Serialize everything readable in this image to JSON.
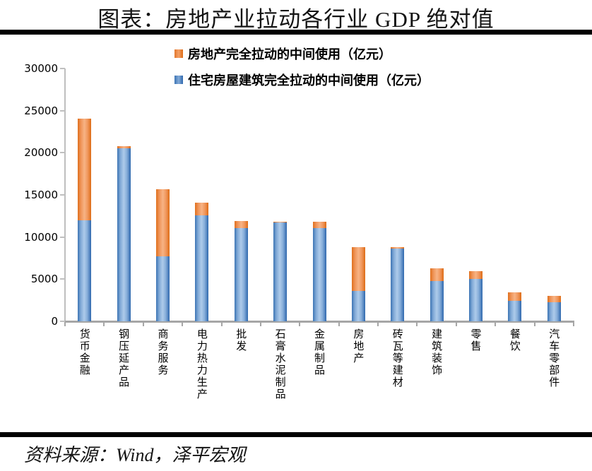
{
  "page": {
    "title": "图表：房地产业拉动各行业 GDP 绝对值",
    "source_note": "资料来源：Wind，泽平宏观"
  },
  "legend": [
    {
      "label": "房地产完全拉动的中间使用（亿元）",
      "color": "#ED7D31"
    },
    {
      "label": "住宅房屋建筑完全拉动的中间使用（亿元）",
      "color": "#4F81BD"
    }
  ],
  "chart_data": {
    "type": "bar",
    "stacked": true,
    "title": "图表：房地产业拉动各行业 GDP 绝对值",
    "xlabel": "",
    "ylabel": "",
    "unit": "亿元",
    "ylim": [
      0,
      30000
    ],
    "yticks": [
      0,
      5000,
      10000,
      15000,
      20000,
      25000,
      30000
    ],
    "grid": false,
    "legend_position": "top",
    "categories": [
      "货币金融",
      "钢压延产品",
      "商务服务",
      "电力热力生产",
      "批发",
      "石膏水泥制品",
      "金属制品",
      "房地产",
      "砖瓦等建材",
      "建筑装饰",
      "零售",
      "餐饮",
      "汽车零部件"
    ],
    "series": [
      {
        "name": "住宅房屋建筑完全拉动的中间使用（亿元）",
        "color": "#4F81BD",
        "values": [
          12000,
          20500,
          7700,
          12600,
          11050,
          11750,
          11100,
          3600,
          8650,
          4800,
          5000,
          2400,
          2250
        ]
      },
      {
        "name": "房地产完全拉动的中间使用（亿元）",
        "color": "#ED7D31",
        "values": [
          12050,
          300,
          8000,
          1500,
          850,
          100,
          700,
          5200,
          150,
          1450,
          950,
          1000,
          750
        ]
      }
    ],
    "totals": [
      24050,
      20800,
      15700,
      14100,
      11900,
      11850,
      11800,
      8800,
      8800,
      6250,
      5950,
      3400,
      3000
    ]
  },
  "axis_colors": {
    "y_axis": "#BFBFBF",
    "x_axis": "#A6A6A6"
  }
}
